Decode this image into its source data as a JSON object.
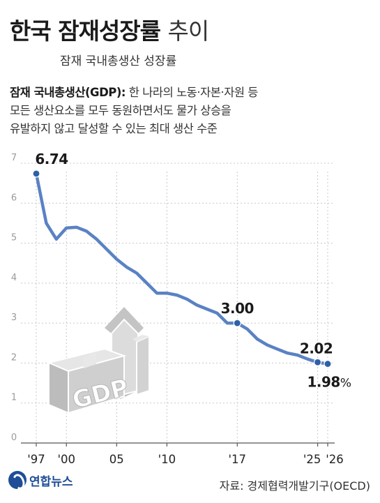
{
  "title": {
    "main": "한국 잠재성장률",
    "suffix": "추이"
  },
  "subtitle": "잠재 국내총생산 성장률",
  "description": {
    "term": "잠재 국내총생산(GDP):",
    "line1_rest": "한 나라의 노동·자본·자원 등",
    "line2": "모든 생산요소를 모두 동원하면서도 물가 상승을",
    "line3": "유발하지 않고 달성할 수 있는 최대 생산 수준"
  },
  "source": "자료: 경제협력개발기구(OECD)",
  "logo": {
    "name": "연합뉴스"
  },
  "colors": {
    "line": "#5a82c4",
    "marker": "#2f5fa8",
    "grid": "#c8c8c8",
    "illustration": "#d9d9d9"
  },
  "chart_data": {
    "type": "line",
    "title": "한국 잠재성장률 추이",
    "subtitle": "잠재 국내총생산 성장률",
    "ylim": [
      0,
      7
    ],
    "yticks": [
      "0",
      "1",
      "2",
      "3",
      "4",
      "5",
      "6",
      "7"
    ],
    "xticks": [
      {
        "year": 1997,
        "label": "'97"
      },
      {
        "year": 2000,
        "label": "'00"
      },
      {
        "year": 2005,
        "label": "05"
      },
      {
        "year": 2010,
        "label": "'10"
      },
      {
        "year": 2017,
        "label": "'17"
      },
      {
        "year": 2025,
        "label": "'25"
      },
      {
        "year": 2026,
        "label": "'26"
      }
    ],
    "series": [
      {
        "x": [
          1997,
          1998,
          1999,
          2000,
          2001,
          2002,
          2003,
          2004,
          2005,
          2006,
          2007,
          2008,
          2009,
          2010,
          2011,
          2012,
          2013,
          2014,
          2015,
          2016,
          2017,
          2018,
          2019,
          2020,
          2021,
          2022,
          2023,
          2024,
          2025,
          2026
        ],
        "y": [
          6.74,
          5.5,
          5.1,
          5.38,
          5.4,
          5.3,
          5.1,
          4.85,
          4.6,
          4.4,
          4.25,
          4.0,
          3.75,
          3.75,
          3.7,
          3.6,
          3.45,
          3.35,
          3.25,
          3.0,
          3.0,
          2.85,
          2.6,
          2.45,
          2.35,
          2.25,
          2.2,
          2.1,
          2.02,
          1.98
        ]
      }
    ],
    "annotations": [
      {
        "year": 1997,
        "text": "6.74"
      },
      {
        "year": 2017,
        "text": "3.00"
      },
      {
        "year": 2025,
        "text": "2.02"
      },
      {
        "year": 2026,
        "text": "1.98",
        "unit": "%"
      }
    ]
  }
}
